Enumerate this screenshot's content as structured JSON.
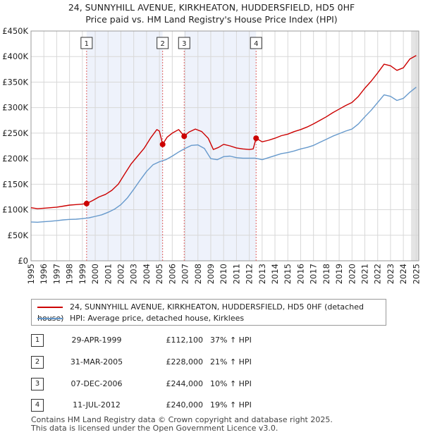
{
  "chart_data": {
    "type": "line",
    "title_line1": "24, SUNNYHILL AVENUE, KIRKHEATON, HUDDERSFIELD, HD5 0HF",
    "title_line2": "Price paid vs. HM Land Registry's House Price Index (HPI)",
    "ylim": [
      0,
      450000
    ],
    "xlim": [
      1995,
      2025.2
    ],
    "y_ticks": [
      {
        "value": 0,
        "label": "£0"
      },
      {
        "value": 50000,
        "label": "£50K"
      },
      {
        "value": 100000,
        "label": "£100K"
      },
      {
        "value": 150000,
        "label": "£150K"
      },
      {
        "value": 200000,
        "label": "£200K"
      },
      {
        "value": 250000,
        "label": "£250K"
      },
      {
        "value": 300000,
        "label": "£300K"
      },
      {
        "value": 350000,
        "label": "£350K"
      },
      {
        "value": 400000,
        "label": "£400K"
      },
      {
        "value": 450000,
        "label": "£450K"
      }
    ],
    "x_ticks": [
      "1995",
      "1996",
      "1997",
      "1998",
      "1999",
      "2000",
      "2001",
      "2002",
      "2003",
      "2004",
      "2005",
      "2006",
      "2007",
      "2008",
      "2009",
      "2010",
      "2011",
      "2012",
      "2013",
      "2014",
      "2015",
      "2016",
      "2017",
      "2018",
      "2019",
      "2020",
      "2021",
      "2022",
      "2023",
      "2024",
      "2025"
    ],
    "grid": true,
    "colors": {
      "property": "#cc0000",
      "hpi": "#6699cc",
      "marker_line": "#e06060",
      "shade": "#eef2fb"
    },
    "series": [
      {
        "name": "24, SUNNYHILL AVENUE, KIRKHEATON, HUDDERSFIELD, HD5 0HF (detached house)",
        "color": "#cc0000",
        "points": [
          [
            1995.0,
            104000
          ],
          [
            1995.5,
            102000
          ],
          [
            1996.0,
            103000
          ],
          [
            1996.5,
            104000
          ],
          [
            1997.0,
            105000
          ],
          [
            1997.5,
            107000
          ],
          [
            1998.0,
            109000
          ],
          [
            1998.5,
            110000
          ],
          [
            1999.0,
            111000
          ],
          [
            1999.33,
            112100
          ],
          [
            1999.8,
            118000
          ],
          [
            2000.3,
            125000
          ],
          [
            2000.8,
            130000
          ],
          [
            2001.3,
            138000
          ],
          [
            2001.8,
            150000
          ],
          [
            2002.3,
            170000
          ],
          [
            2002.8,
            190000
          ],
          [
            2003.3,
            205000
          ],
          [
            2003.8,
            220000
          ],
          [
            2004.3,
            240000
          ],
          [
            2004.8,
            257000
          ],
          [
            2005.0,
            254000
          ],
          [
            2005.25,
            228000
          ],
          [
            2005.6,
            242000
          ],
          [
            2006.0,
            250000
          ],
          [
            2006.5,
            257000
          ],
          [
            2006.93,
            244000
          ],
          [
            2007.3,
            252000
          ],
          [
            2007.8,
            258000
          ],
          [
            2008.3,
            253000
          ],
          [
            2008.8,
            240000
          ],
          [
            2009.2,
            218000
          ],
          [
            2009.6,
            222000
          ],
          [
            2010.0,
            228000
          ],
          [
            2010.5,
            225000
          ],
          [
            2011.0,
            221000
          ],
          [
            2011.5,
            219000
          ],
          [
            2012.0,
            218000
          ],
          [
            2012.3,
            219000
          ],
          [
            2012.53,
            240000
          ],
          [
            2013.0,
            233000
          ],
          [
            2013.5,
            236000
          ],
          [
            2014.0,
            240000
          ],
          [
            2014.5,
            245000
          ],
          [
            2015.0,
            248000
          ],
          [
            2015.5,
            253000
          ],
          [
            2016.0,
            257000
          ],
          [
            2016.5,
            262000
          ],
          [
            2017.0,
            268000
          ],
          [
            2017.5,
            275000
          ],
          [
            2018.0,
            282000
          ],
          [
            2018.5,
            290000
          ],
          [
            2019.0,
            297000
          ],
          [
            2019.5,
            304000
          ],
          [
            2020.0,
            310000
          ],
          [
            2020.5,
            322000
          ],
          [
            2021.0,
            338000
          ],
          [
            2021.5,
            352000
          ],
          [
            2022.0,
            368000
          ],
          [
            2022.5,
            385000
          ],
          [
            2023.0,
            382000
          ],
          [
            2023.5,
            373000
          ],
          [
            2024.0,
            378000
          ],
          [
            2024.5,
            395000
          ],
          [
            2025.0,
            402000
          ]
        ]
      },
      {
        "name": "HPI: Average price, detached house, Kirklees",
        "color": "#6699cc",
        "points": [
          [
            1995.0,
            76000
          ],
          [
            1995.5,
            75500
          ],
          [
            1996.0,
            76500
          ],
          [
            1996.5,
            77500
          ],
          [
            1997.0,
            78500
          ],
          [
            1997.5,
            80000
          ],
          [
            1998.0,
            81000
          ],
          [
            1998.5,
            81500
          ],
          [
            1999.0,
            82500
          ],
          [
            1999.5,
            84000
          ],
          [
            2000.0,
            87000
          ],
          [
            2000.5,
            90000
          ],
          [
            2001.0,
            95000
          ],
          [
            2001.5,
            101000
          ],
          [
            2002.0,
            110000
          ],
          [
            2002.5,
            123000
          ],
          [
            2003.0,
            140000
          ],
          [
            2003.5,
            158000
          ],
          [
            2004.0,
            175000
          ],
          [
            2004.5,
            188000
          ],
          [
            2005.0,
            194000
          ],
          [
            2005.5,
            198000
          ],
          [
            2006.0,
            205000
          ],
          [
            2006.5,
            213000
          ],
          [
            2007.0,
            220000
          ],
          [
            2007.5,
            226000
          ],
          [
            2008.0,
            227000
          ],
          [
            2008.5,
            220000
          ],
          [
            2009.0,
            200000
          ],
          [
            2009.5,
            198000
          ],
          [
            2010.0,
            204000
          ],
          [
            2010.5,
            205000
          ],
          [
            2011.0,
            202000
          ],
          [
            2011.5,
            201000
          ],
          [
            2012.0,
            201000
          ],
          [
            2012.5,
            201000
          ],
          [
            2013.0,
            198000
          ],
          [
            2013.5,
            202000
          ],
          [
            2014.0,
            206000
          ],
          [
            2014.5,
            210000
          ],
          [
            2015.0,
            212000
          ],
          [
            2015.5,
            215000
          ],
          [
            2016.0,
            219000
          ],
          [
            2016.5,
            222000
          ],
          [
            2017.0,
            226000
          ],
          [
            2017.5,
            232000
          ],
          [
            2018.0,
            238000
          ],
          [
            2018.5,
            244000
          ],
          [
            2019.0,
            249000
          ],
          [
            2019.5,
            254000
          ],
          [
            2020.0,
            258000
          ],
          [
            2020.5,
            268000
          ],
          [
            2021.0,
            282000
          ],
          [
            2021.5,
            295000
          ],
          [
            2022.0,
            310000
          ],
          [
            2022.5,
            325000
          ],
          [
            2023.0,
            322000
          ],
          [
            2023.5,
            314000
          ],
          [
            2024.0,
            318000
          ],
          [
            2024.5,
            330000
          ],
          [
            2025.0,
            340000
          ]
        ]
      }
    ],
    "sales": [
      {
        "id": "1",
        "x": 1999.33,
        "value": 112100
      },
      {
        "id": "2",
        "x": 2005.25,
        "value": 228000
      },
      {
        "id": "3",
        "x": 2006.93,
        "value": 244000
      },
      {
        "id": "4",
        "x": 2012.53,
        "value": 240000
      }
    ]
  },
  "legend": {
    "property_label": "24, SUNNYHILL AVENUE, KIRKHEATON, HUDDERSFIELD, HD5 0HF (detached house)",
    "hpi_label": "HPI: Average price, detached house, Kirklees"
  },
  "transactions": [
    {
      "num": "1",
      "date": "29-APR-1999",
      "price": "£112,100",
      "hpi": "37% ↑ HPI"
    },
    {
      "num": "2",
      "date": "31-MAR-2005",
      "price": "£228,000",
      "hpi": "21% ↑ HPI"
    },
    {
      "num": "3",
      "date": "07-DEC-2006",
      "price": "£244,000",
      "hpi": "10% ↑ HPI"
    },
    {
      "num": "4",
      "date": "11-JUL-2012",
      "price": "£240,000",
      "hpi": "19% ↑ HPI"
    }
  ],
  "footer": {
    "line1": "Contains HM Land Registry data © Crown copyright and database right 2025.",
    "line2": "This data is licensed under the Open Government Licence v3.0."
  }
}
